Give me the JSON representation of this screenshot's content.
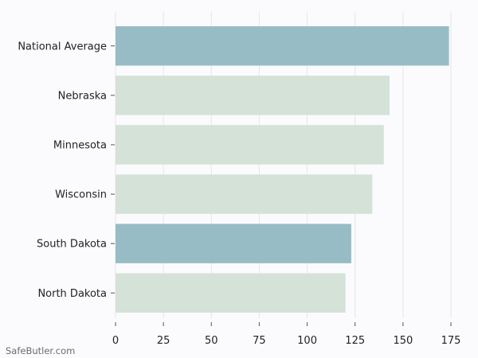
{
  "chart_data": {
    "type": "bar",
    "orientation": "horizontal",
    "categories": [
      "National Average",
      "Nebraska",
      "Minnesota",
      "Wisconsin",
      "South Dakota",
      "North Dakota"
    ],
    "values": [
      174,
      143,
      140,
      134,
      123,
      120
    ],
    "bar_colors": [
      "#97bcc5",
      "#d4e2d8",
      "#d4e2d8",
      "#d4e2d8",
      "#97bcc5",
      "#d4e2d8"
    ],
    "xlim": [
      0,
      175
    ],
    "x_ticks": [
      0,
      25,
      50,
      75,
      100,
      125,
      150,
      175
    ],
    "grid": "vertical",
    "title": "",
    "xlabel": "",
    "ylabel": ""
  },
  "watermark": "SafeButler.com"
}
